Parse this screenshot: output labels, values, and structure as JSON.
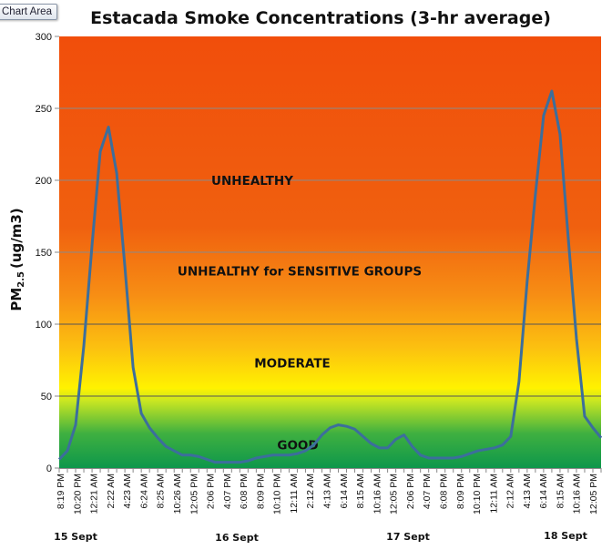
{
  "tooltip": "Chart Area",
  "chart_data": {
    "type": "line",
    "title": "Estacada Smoke Concentrations (3-hr average)",
    "ylabel_main": "PM",
    "ylabel_sub": "2.5",
    "ylabel_unit": "(ug/m3)",
    "ylim": [
      0,
      300
    ],
    "yticks": [
      0,
      50,
      100,
      150,
      200,
      250,
      300
    ],
    "grid": true,
    "line_color": "#3c6e9c",
    "x_tick_labels": [
      "8:19 PM",
      "10:20 PM",
      "12:21 AM",
      "2:22 AM",
      "4:23 AM",
      "6:24 AM",
      "8:25 AM",
      "10:26 AM",
      "12:05 PM",
      "2:06 PM",
      "4:07 PM",
      "6:08 PM",
      "8:09 PM",
      "10:10 PM",
      "12:11 AM",
      "2:12 AM",
      "4:13 AM",
      "6:14 AM",
      "8:15 AM",
      "10:16 AM",
      "12:05 PM",
      "2:06 PM",
      "4:07 PM",
      "6:08 PM",
      "8:09 PM",
      "10:10 PM",
      "12:11 AM",
      "2:12 AM",
      "4:13 AM",
      "6:14 AM",
      "8:15 AM",
      "10:16 AM",
      "12:05 PM"
    ],
    "date_labels": [
      "15 Sept",
      "16 Sept",
      "17 Sept",
      "18 Sept"
    ],
    "values": [
      6,
      12,
      30,
      85,
      155,
      220,
      237,
      205,
      140,
      70,
      38,
      28,
      21,
      15,
      12,
      9,
      9,
      8,
      6,
      4,
      4,
      4,
      4,
      5,
      7,
      8,
      9,
      9,
      9,
      10,
      12,
      16,
      23,
      28,
      30,
      29,
      27,
      22,
      17,
      14,
      14,
      20,
      23,
      15,
      9,
      7,
      7,
      7,
      7,
      8,
      10,
      12,
      13,
      14,
      16,
      22,
      60,
      130,
      190,
      245,
      262,
      232,
      160,
      90,
      36,
      28,
      21
    ],
    "zones": [
      {
        "label": "UNHEALTHY",
        "value": 200
      },
      {
        "label": "UNHEALTHY for SENSITIVE GROUPS",
        "value": 137
      },
      {
        "label": "MODERATE",
        "value": 73
      },
      {
        "label": "GOOD",
        "value": 16
      }
    ],
    "zone_colors": {
      "good": "#10994a",
      "moderate": "#fff200",
      "sensitive": "#f7901a",
      "unhealthy": "#f04f0c"
    }
  }
}
